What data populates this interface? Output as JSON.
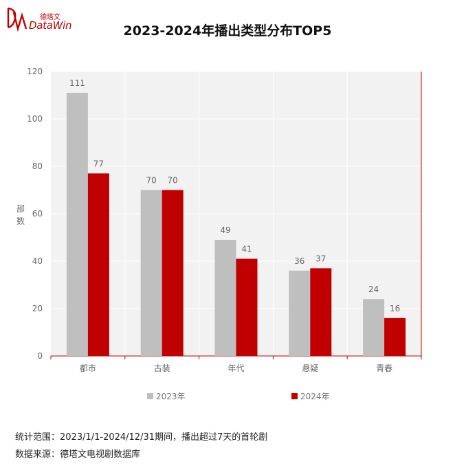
{
  "logo": {
    "cn": "德塔文",
    "en": "DataWin"
  },
  "legend": [
    "2023年",
    "2024年"
  ],
  "notes": {
    "scope": "统计范围：2023/1/1-2024/12/31期间，播出超过7天的首轮剧",
    "source": "数据来源：德塔文电视剧数据库"
  },
  "colors": {
    "s2023": "#bfbfbf",
    "s2024": "#c00000",
    "accent": "#c00000",
    "plot_bg": "#f2f2f2"
  },
  "chart_data": {
    "type": "bar",
    "title": "2023-2024年播出类型分布TOP5",
    "ylabel": "部数",
    "xlabel": "",
    "categories": [
      "都市",
      "古装",
      "年代",
      "悬疑",
      "青春"
    ],
    "series": [
      {
        "name": "2023年",
        "values": [
          111,
          70,
          49,
          36,
          24
        ]
      },
      {
        "name": "2024年",
        "values": [
          77,
          70,
          41,
          37,
          16
        ]
      }
    ],
    "ylim": [
      0,
      120
    ],
    "yticks": [
      0,
      20,
      40,
      60,
      80,
      100,
      120
    ],
    "grid": true,
    "legend_position": "bottom"
  }
}
